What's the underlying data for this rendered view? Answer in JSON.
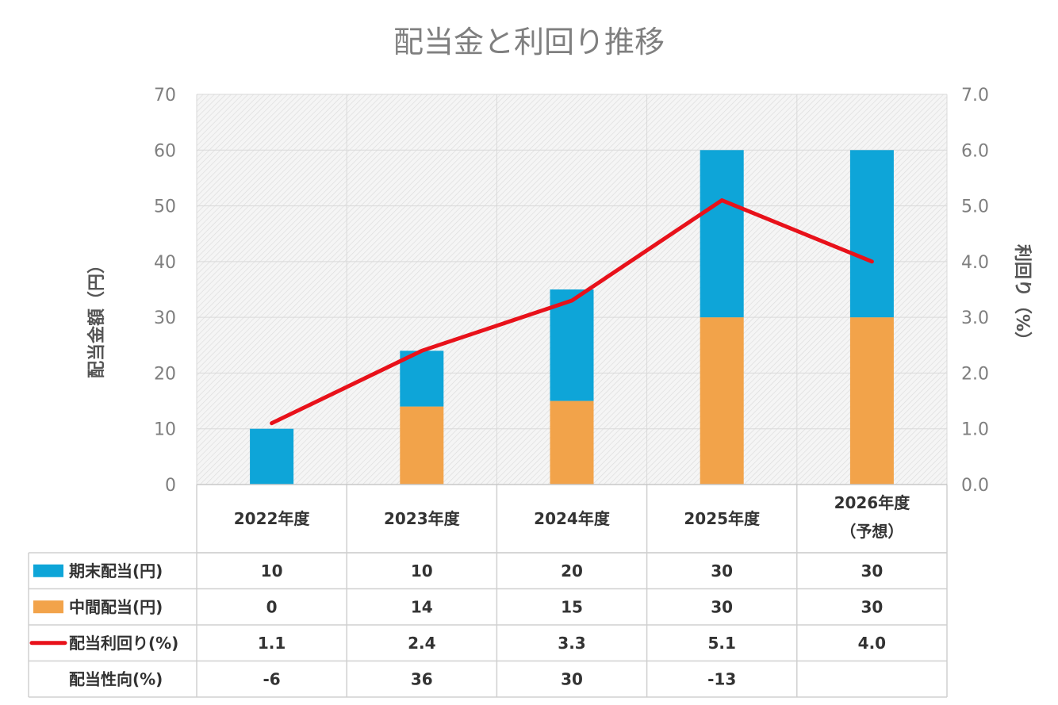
{
  "chart_data": {
    "type": "bar",
    "stacked": true,
    "title": "配当金と利回り推移",
    "ylabel": "配当金額（円）",
    "y2label": "利回り（%）",
    "ylim": [
      0,
      70
    ],
    "y2lim": [
      0.0,
      7.0
    ],
    "yticks": [
      "0",
      "10",
      "20",
      "30",
      "40",
      "50",
      "60",
      "70"
    ],
    "y2ticks": [
      "0.0",
      "1.0",
      "2.0",
      "3.0",
      "4.0",
      "5.0",
      "6.0",
      "7.0"
    ],
    "categories": [
      {
        "line1": "2022年度",
        "line2": ""
      },
      {
        "line1": "2023年度",
        "line2": ""
      },
      {
        "line1": "2024年度",
        "line2": ""
      },
      {
        "line1": "2025年度",
        "line2": ""
      },
      {
        "line1": "2026年度",
        "line2": "（予想）"
      }
    ],
    "series": [
      {
        "name": "期末配当(円)",
        "type": "bar",
        "axis": "left",
        "color": "#0ea5d8",
        "values": [
          10,
          10,
          20,
          30,
          30
        ],
        "labels": [
          "10",
          "10",
          "20",
          "30",
          "30"
        ]
      },
      {
        "name": "中間配当(円)",
        "type": "bar",
        "axis": "left",
        "color": "#f2a34a",
        "values": [
          0,
          14,
          15,
          30,
          30
        ],
        "labels": [
          "0",
          "14",
          "15",
          "30",
          "30"
        ]
      },
      {
        "name": "配当利回り(%)",
        "type": "line",
        "axis": "right",
        "color": "#e8111a",
        "values": [
          1.1,
          2.4,
          3.3,
          5.1,
          4.0
        ],
        "labels": [
          "1.1",
          "2.4",
          "3.3",
          "5.1",
          "4.0"
        ]
      },
      {
        "name": "配当性向(%)",
        "type": "table-only",
        "values": [
          -6,
          36,
          30,
          -13,
          null
        ],
        "labels": [
          "-6",
          "36",
          "30",
          "-13",
          ""
        ]
      }
    ]
  }
}
